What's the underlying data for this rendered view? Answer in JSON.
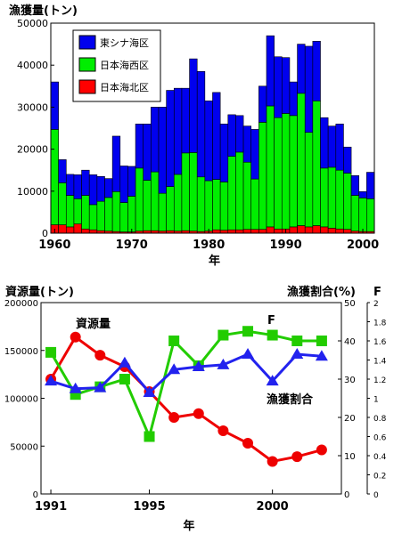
{
  "chart_data": [
    {
      "type": "bar",
      "stacked": true,
      "title": "漁獲量(トン)",
      "xlabel": "年",
      "ylabel": "",
      "ylim": [
        0,
        50000
      ],
      "y_ticks": [
        0,
        10000,
        20000,
        30000,
        40000,
        50000
      ],
      "x_ticks": [
        1960,
        1970,
        1980,
        1990,
        2000
      ],
      "legend_position": "top-left",
      "grid": false,
      "categories": [
        1960,
        1961,
        1962,
        1963,
        1964,
        1965,
        1966,
        1967,
        1968,
        1969,
        1970,
        1971,
        1972,
        1973,
        1974,
        1975,
        1976,
        1977,
        1978,
        1979,
        1980,
        1981,
        1982,
        1983,
        1984,
        1985,
        1986,
        1987,
        1988,
        1989,
        1990,
        1991,
        1992,
        1993,
        1994,
        1995,
        1996,
        1997,
        1998,
        1999,
        2000,
        2001
      ],
      "series": [
        {
          "name": "日本海北区",
          "color": "#ff0000",
          "values": [
            2000,
            2000,
            1500,
            2200,
            1000,
            800,
            600,
            500,
            400,
            300,
            300,
            500,
            600,
            600,
            500,
            600,
            500,
            600,
            500,
            400,
            500,
            800,
            700,
            800,
            800,
            900,
            900,
            900,
            1500,
            1000,
            1000,
            1500,
            1800,
            1500,
            1800,
            1500,
            1200,
            1000,
            900,
            500,
            400,
            400
          ]
        },
        {
          "name": "日本海西区",
          "color": "#00ee00",
          "values": [
            22700,
            10000,
            7500,
            6000,
            8000,
            6000,
            7000,
            8000,
            9500,
            7000,
            8500,
            15000,
            12000,
            14000,
            9000,
            10500,
            13500,
            18500,
            18700,
            13000,
            12000,
            12000,
            11500,
            17500,
            18500,
            16000,
            12000,
            25500,
            28800,
            26500,
            27500,
            26500,
            31500,
            22500,
            29700,
            14000,
            14500,
            14000,
            13400,
            8500,
            8000,
            7800
          ]
        },
        {
          "name": "東シナ海区",
          "color": "#0000ee",
          "values": [
            11300,
            5500,
            5000,
            5700,
            6000,
            7100,
            5900,
            4500,
            13200,
            8700,
            7100,
            10500,
            13400,
            15400,
            20500,
            22900,
            20500,
            15400,
            22300,
            25100,
            19000,
            20700,
            13800,
            9900,
            8700,
            8600,
            11800,
            8600,
            16700,
            14500,
            13300,
            8000,
            11700,
            20500,
            14200,
            12000,
            9800,
            11000,
            6200,
            4700,
            1500,
            6300
          ]
        }
      ]
    },
    {
      "type": "line",
      "ylabel_left": "資源量(トン)",
      "ylabel_right_1": "漁獲割合(%)",
      "ylabel_right_2": "F",
      "xlabel": "年",
      "x_ticks": [
        1991,
        1995,
        2000
      ],
      "ylim_left": [
        0,
        200000
      ],
      "y_ticks_left": [
        0,
        50000,
        100000,
        150000,
        200000
      ],
      "ylim_right_1": [
        0,
        50
      ],
      "y_ticks_right_1": [
        0,
        10,
        20,
        30,
        40,
        50
      ],
      "ylim_right_2": [
        0,
        2
      ],
      "y_ticks_right_2": [
        "0",
        "0.2",
        "0.4",
        "0.6",
        "0.8",
        "1",
        "1.2",
        "1.4",
        "1.6",
        "1.8",
        "2"
      ],
      "x": [
        1991,
        1992,
        1993,
        1994,
        1995,
        1996,
        1997,
        1998,
        1999,
        2000,
        2001,
        2002
      ],
      "annotations": {
        "biomass": "資源量",
        "f": "F",
        "rate": "漁獲割合"
      },
      "series": [
        {
          "name": "資源量",
          "color": "#ee0000",
          "marker": "circle",
          "axis": "left",
          "x": [
            1991,
            1992,
            1993,
            1994,
            1995,
            1996,
            1997,
            1998,
            1999,
            2000,
            2001,
            2002
          ],
          "values": [
            120000,
            164000,
            145000,
            133000,
            107000,
            80000,
            84000,
            66000,
            53000,
            34000,
            39000,
            46000
          ]
        },
        {
          "name": "漁獲割合",
          "color": "#22cc00",
          "marker": "square",
          "axis": "right_1",
          "x": [
            1991,
            1992,
            1993,
            1994,
            1995,
            1996,
            1997,
            1998,
            1999,
            2000,
            2001,
            2002
          ],
          "values": [
            37,
            26,
            28,
            30,
            15,
            40,
            33.5,
            41.5,
            42.5,
            41.5,
            40,
            40
          ]
        },
        {
          "name": "F",
          "color": "#2222ee",
          "marker": "triangle",
          "axis": "right_2",
          "x": [
            1991,
            1992,
            1993,
            1994,
            1995,
            1996,
            1997,
            1998,
            1999,
            2000,
            2001,
            2002
          ],
          "values": [
            1.18,
            1.1,
            1.11,
            1.37,
            1.06,
            1.3,
            1.33,
            1.35,
            1.46,
            1.18,
            1.46,
            1.44
          ]
        }
      ]
    }
  ]
}
